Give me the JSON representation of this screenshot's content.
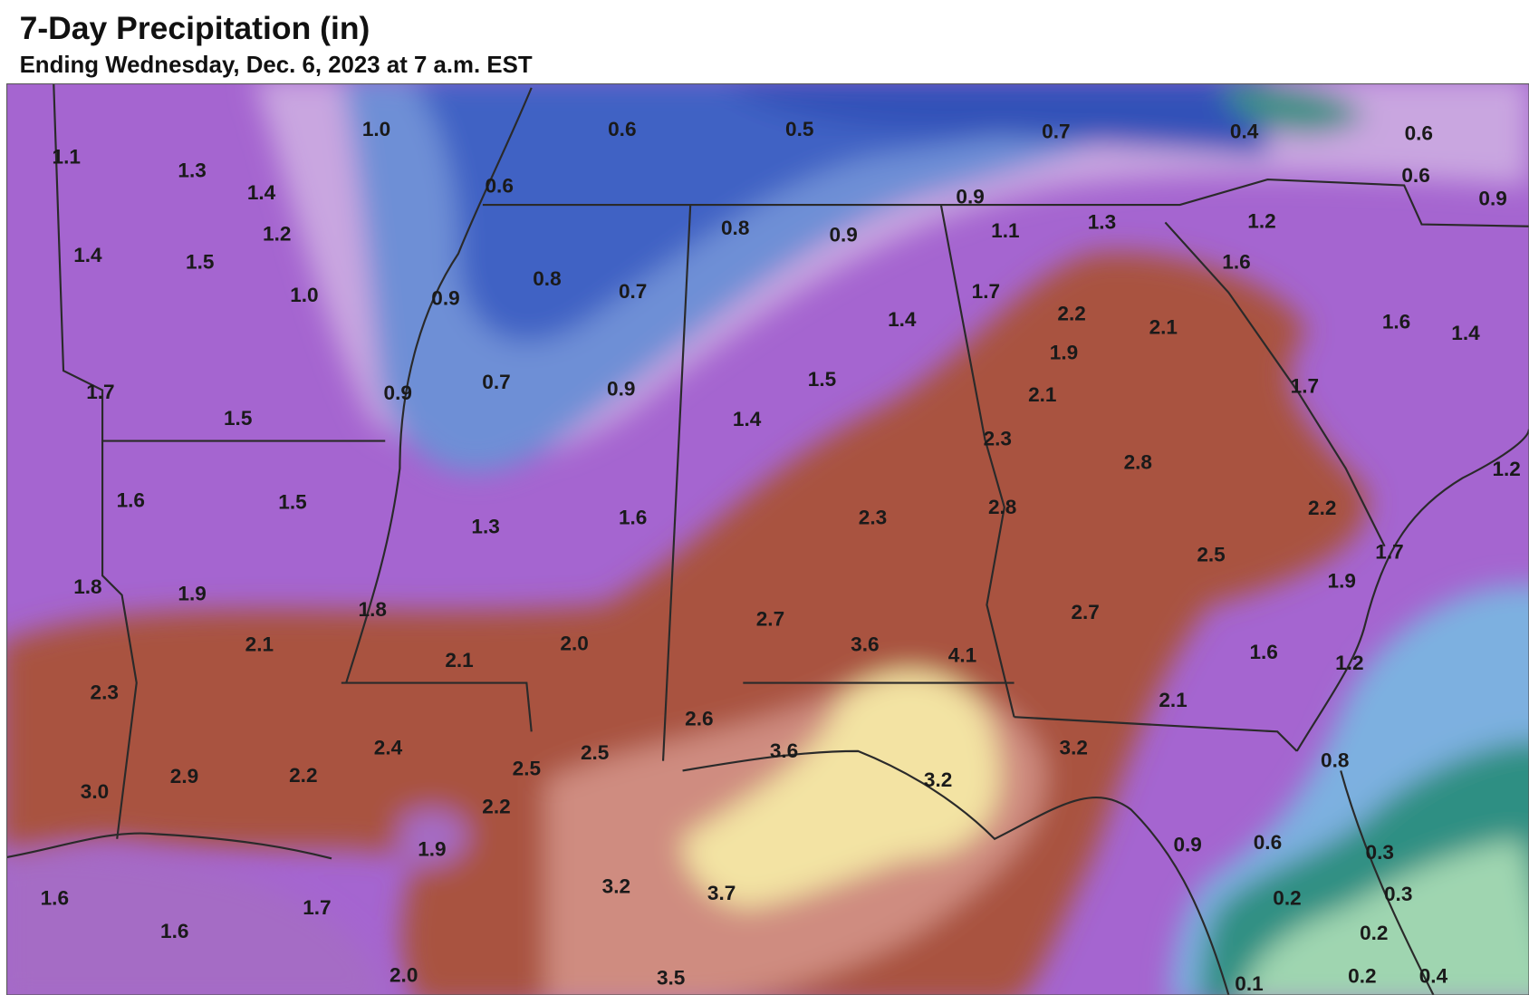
{
  "header": {
    "title": "7-Day Precipitation (in)",
    "subtitle": "Ending Wednesday, Dec. 6, 2023 at 7 a.m. EST"
  },
  "labels": [
    "1.1",
    "1.3",
    "1.0",
    "0.6",
    "0.5",
    "0.7",
    "0.4",
    "0.6",
    "1.4",
    "0.6",
    "0.6",
    "0.9",
    "0.9",
    "1.2",
    "0.8",
    "0.9",
    "1.1",
    "1.3",
    "1.2",
    "1.4",
    "1.5",
    "1.6",
    "1.0",
    "0.9",
    "0.8",
    "0.7",
    "1.7",
    "2.2",
    "2.1",
    "1.6",
    "1.4",
    "1.4",
    "1.9",
    "1.7",
    "1.5",
    "0.9",
    "0.7",
    "0.9",
    "1.5",
    "1.4",
    "2.1",
    "1.7",
    "2.3",
    "2.8",
    "1.2",
    "1.6",
    "1.5",
    "1.3",
    "1.6",
    "2.3",
    "2.8",
    "2.2",
    "2.5",
    "1.7",
    "1.9",
    "1.8",
    "1.9",
    "1.8",
    "2.7",
    "2.7",
    "2.1",
    "2.0",
    "3.6",
    "4.1",
    "1.6",
    "2.1",
    "2.3",
    "2.6",
    "2.1",
    "2.4",
    "2.5",
    "3.6",
    "3.2",
    "0.8",
    "3.0",
    "2.9",
    "2.2",
    "2.5",
    "2.2",
    "3.2",
    "1.9",
    "0.9",
    "0.6",
    "0.3",
    "3.2",
    "3.7",
    "0.2",
    "0.3",
    "1.6",
    "1.7",
    "1.6",
    "0.2",
    "2.0",
    "3.5",
    "0.2",
    "0.4",
    "0.1",
    "1.2"
  ]
}
